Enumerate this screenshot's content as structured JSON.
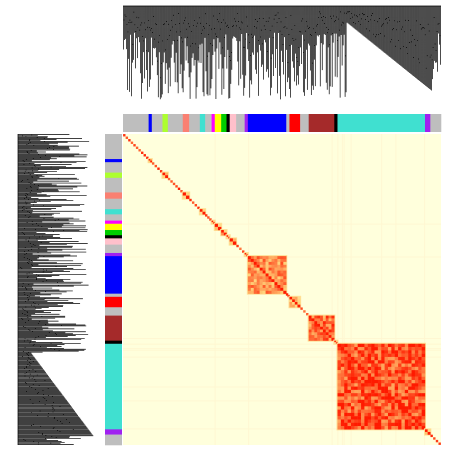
{
  "chart_data": {
    "type": "heatmap",
    "title": "",
    "xlabel": "",
    "ylabel": "",
    "description_free": true,
    "colors": {
      "background": "#ffffff",
      "heat_low": "#ffffdc",
      "heat_mid": "#ffd27a",
      "heat_high": "#ff1a00",
      "dendrogram": "#000000",
      "module_default": "#bebebe"
    },
    "module_order": [
      "grey",
      "blue",
      "grey",
      "greenyellow",
      "grey",
      "salmon",
      "grey",
      "turquoise-small",
      "grey",
      "magenta",
      "yellow",
      "green",
      "black",
      "pink",
      "grey",
      "purple",
      "blue",
      "grey",
      "red",
      "grey",
      "brown",
      "black",
      "turquoise",
      "purple",
      "grey"
    ],
    "module_colors": {
      "grey": "#bebebe",
      "blue": "#0000ff",
      "greenyellow": "#adff2f",
      "salmon": "#fa8072",
      "turquoise-small": "#40e0d0",
      "magenta": "#ff00ff",
      "yellow": "#ffff00",
      "green": "#00cd00",
      "black": "#000000",
      "pink": "#ffc0cb",
      "purple": "#a020f0",
      "red": "#ff0000",
      "brown": "#a52a2a",
      "turquoise": "#40e0d0"
    },
    "module_sizes": [
      24,
      3,
      10,
      5,
      14,
      6,
      10,
      5,
      6,
      3,
      6,
      5,
      3,
      6,
      8,
      3,
      36,
      3,
      10,
      8,
      24,
      3,
      82,
      5,
      10
    ],
    "module_tom_strength": [
      0.05,
      0.6,
      0.05,
      0.55,
      0.05,
      0.55,
      0.05,
      0.5,
      0.05,
      0.6,
      0.65,
      0.7,
      0.5,
      0.55,
      0.05,
      0.5,
      0.75,
      0.05,
      0.6,
      0.05,
      0.85,
      0.5,
      0.95,
      0.55,
      0.05
    ]
  }
}
